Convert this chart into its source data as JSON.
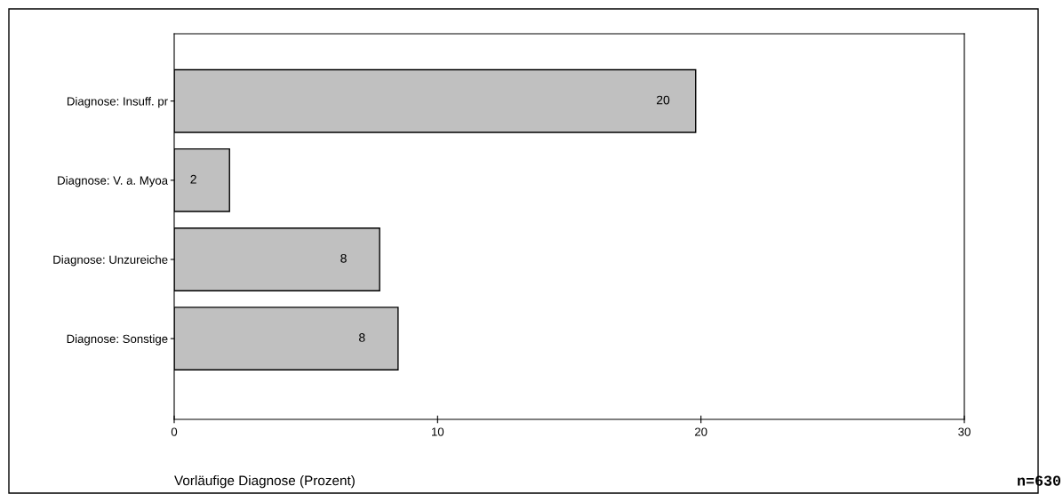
{
  "chart_data": {
    "type": "bar",
    "orientation": "horizontal",
    "categories": [
      "Diagnose: Insuff. pr",
      "Diagnose: V. a. Myoa",
      "Diagnose: Unzureiche",
      "Diagnose: Sonstige"
    ],
    "values": [
      19.8,
      2.1,
      7.8,
      8.5
    ],
    "value_labels": [
      "20",
      "2",
      "8",
      "8"
    ],
    "color": "#c0c0c0",
    "xlabel": "Vorläufige Diagnose (Prozent)",
    "xlim": [
      0,
      30
    ],
    "xticks": [
      0,
      10,
      20,
      30
    ],
    "grid": false,
    "annotations": [
      "n=630"
    ]
  }
}
